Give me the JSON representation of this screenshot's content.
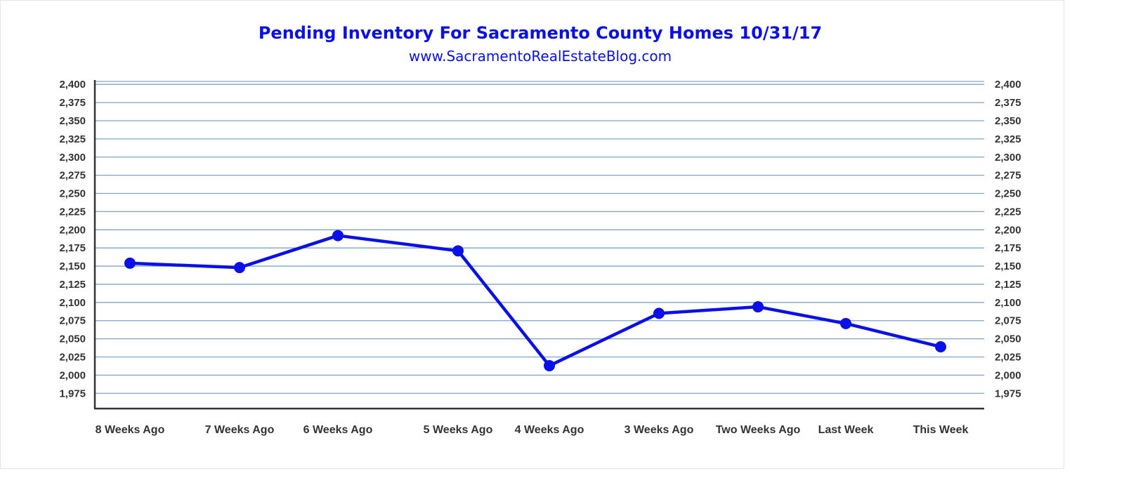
{
  "chart_data": {
    "type": "line",
    "title": "Pending Inventory For Sacramento County Homes 10/31/17",
    "subtitle": "www.SacramentoRealEstateBlog.com",
    "categories": [
      "8 Weeks Ago",
      "7 Weeks Ago",
      "6 Weeks Ago",
      "5 Weeks Ago",
      "4 Weeks Ago",
      "3 Weeks Ago",
      "Two Weeks Ago",
      "Last Week",
      "This Week"
    ],
    "series": [
      {
        "values": [
          2154,
          2148,
          2192,
          2171,
          2013,
          2085,
          2094,
          2071,
          2039
        ]
      }
    ],
    "y_ticks": [
      "1,975",
      "2,000",
      "2,025",
      "2,050",
      "2,075",
      "2,100",
      "2,125",
      "2,150",
      "2,175",
      "2,200",
      "2,225",
      "2,250",
      "2,275",
      "2,300",
      "2,325",
      "2,350",
      "2,375",
      "2,400"
    ],
    "y_tick_values": [
      1975,
      2000,
      2025,
      2050,
      2075,
      2100,
      2125,
      2150,
      2175,
      2200,
      2225,
      2250,
      2275,
      2300,
      2325,
      2350,
      2375,
      2400
    ],
    "ylim": [
      1954,
      2406
    ],
    "y_axis_labels_on_both_sides": true,
    "grid": true,
    "legend": "none",
    "colors": {
      "line": "#0a10e8",
      "grid": "#7fa3c6",
      "axis": "#333333",
      "title": "#0a10e8"
    }
  }
}
